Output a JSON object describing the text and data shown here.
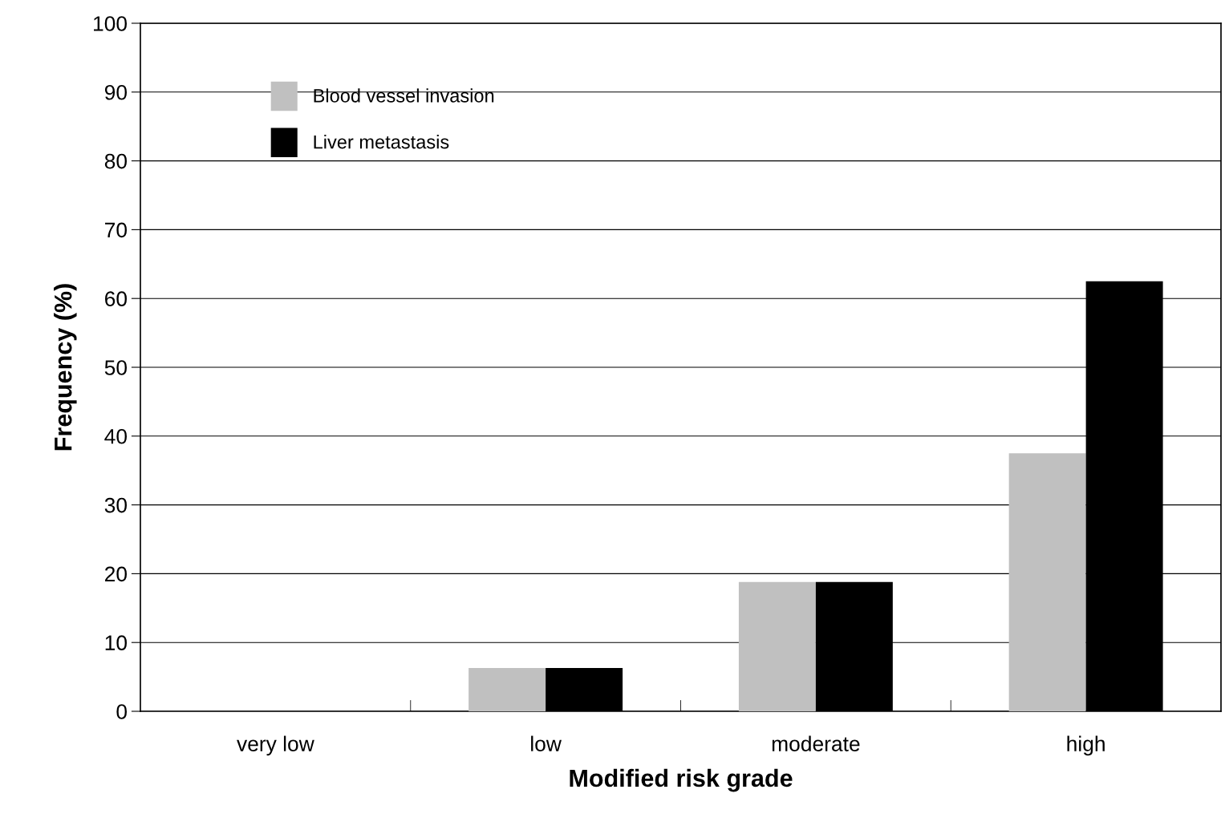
{
  "chart_data": {
    "type": "bar",
    "xlabel": "Modified risk grade",
    "ylabel": "Frequency (%)",
    "categories": [
      "very low",
      "low",
      "moderate",
      "high"
    ],
    "series": [
      {
        "name": "Blood vessel invasion",
        "color": "#c0c0c0",
        "values": [
          0,
          6.3,
          18.8,
          37.5
        ]
      },
      {
        "name": "Liver metastasis",
        "color": "#000000",
        "values": [
          0,
          6.3,
          18.8,
          62.5
        ]
      }
    ],
    "ylim": [
      0,
      100
    ],
    "yticks": [
      0,
      10,
      20,
      30,
      40,
      50,
      60,
      70,
      80,
      90,
      100
    ],
    "grid": "y",
    "legend": "top left"
  }
}
